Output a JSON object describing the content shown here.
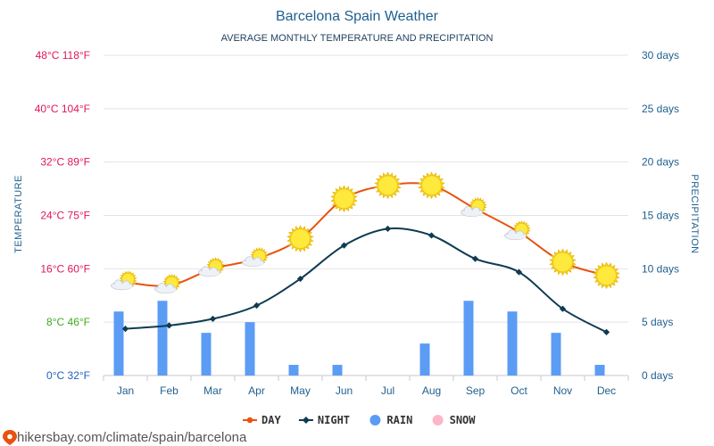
{
  "chart_data": {
    "type": "line",
    "title": "Barcelona Spain Weather",
    "subtitle": "AVERAGE MONTHLY TEMPERATURE AND PRECIPITATION",
    "categories": [
      "Jan",
      "Feb",
      "Mar",
      "Apr",
      "May",
      "Jun",
      "Jul",
      "Aug",
      "Sep",
      "Oct",
      "Nov",
      "Dec"
    ],
    "series": [
      {
        "name": "DAY",
        "type": "line",
        "axis": "temperature",
        "color": "#e8520f",
        "values": [
          14,
          13.5,
          16,
          17.5,
          20.5,
          26.5,
          28.5,
          28.5,
          25,
          21.5,
          17,
          15
        ]
      },
      {
        "name": "NIGHT",
        "type": "line",
        "axis": "temperature",
        "color": "#0f3b52",
        "values": [
          7,
          7.5,
          8.5,
          10.5,
          14.5,
          19.5,
          22,
          21,
          17.5,
          15.5,
          10,
          6.5
        ]
      },
      {
        "name": "RAIN",
        "type": "bar",
        "axis": "precipitation",
        "color": "#5b9cf5",
        "values": [
          6,
          7,
          4,
          5,
          1,
          1,
          0,
          3,
          7,
          6,
          4,
          1
        ]
      },
      {
        "name": "SNOW",
        "type": "bar",
        "axis": "precipitation",
        "color": "#ffb6c8",
        "values": [
          0,
          0,
          0,
          0,
          0,
          0,
          0,
          0,
          0,
          0,
          0,
          0
        ]
      }
    ],
    "weather_icons": [
      "partly-cloudy",
      "partly-cloudy",
      "partly-cloudy",
      "partly-cloudy",
      "sun",
      "sun",
      "sun",
      "sun",
      "partly-cloudy",
      "partly-cloudy",
      "sun",
      "sun"
    ],
    "ylabel": "TEMPERATURE",
    "y2label": "PRECIPITATION",
    "ylim": [
      0,
      48
    ],
    "y2lim": [
      0,
      30
    ],
    "yticks": [
      {
        "c": 0,
        "label": "0°C 32°F",
        "color": "#1f5fbf"
      },
      {
        "c": 8,
        "label": "8°C 46°F",
        "color": "#3cab1c"
      },
      {
        "c": 16,
        "label": "16°C 60°F",
        "color": "#e0165a"
      },
      {
        "c": 24,
        "label": "24°C 75°F",
        "color": "#e0165a"
      },
      {
        "c": 32,
        "label": "32°C 89°F",
        "color": "#e0165a"
      },
      {
        "c": 40,
        "label": "40°C 104°F",
        "color": "#e0165a"
      },
      {
        "c": 48,
        "label": "48°C 118°F",
        "color": "#e0165a"
      }
    ],
    "y2ticks": [
      {
        "v": 0,
        "label": "0 days"
      },
      {
        "v": 5,
        "label": "5 days"
      },
      {
        "v": 10,
        "label": "10 days"
      },
      {
        "v": 15,
        "label": "15 days"
      },
      {
        "v": 20,
        "label": "20 days"
      },
      {
        "v": 25,
        "label": "25 days"
      },
      {
        "v": 30,
        "label": "30 days"
      }
    ],
    "legend_position": "bottom",
    "grid": true
  },
  "footer": {
    "source": "hikersbay.com/climate/spain/barcelona",
    "pin_color": "#e8520f"
  }
}
